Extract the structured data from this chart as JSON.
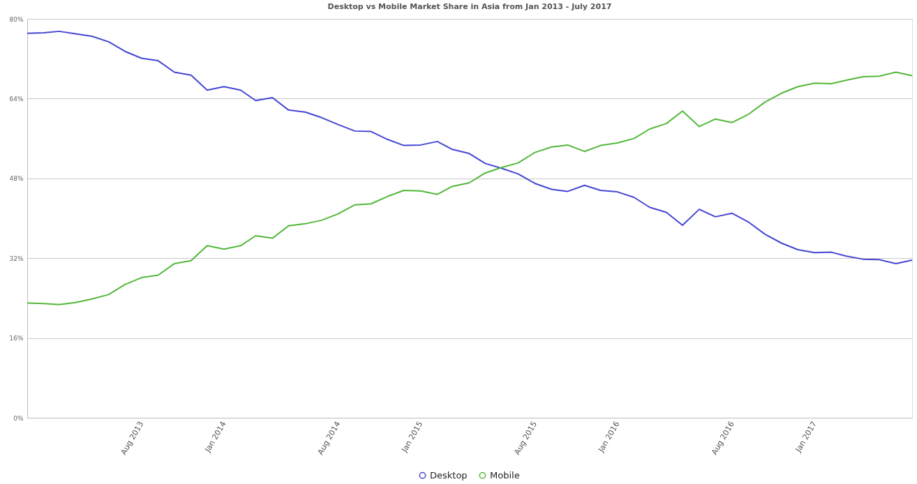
{
  "chart_data": {
    "type": "line",
    "title": "Desktop vs Mobile Market Share in Asia from Jan 2013 - July 2017",
    "x": [
      "2013-01",
      "2013-02",
      "2013-03",
      "2013-04",
      "2013-05",
      "2013-06",
      "2013-07",
      "2013-08",
      "2013-09",
      "2013-10",
      "2013-11",
      "2013-12",
      "2014-01",
      "2014-02",
      "2014-03",
      "2014-04",
      "2014-05",
      "2014-06",
      "2014-07",
      "2014-08",
      "2014-09",
      "2014-10",
      "2014-11",
      "2014-12",
      "2015-01",
      "2015-02",
      "2015-03",
      "2015-04",
      "2015-05",
      "2015-06",
      "2015-07",
      "2015-08",
      "2015-09",
      "2015-10",
      "2015-11",
      "2015-12",
      "2016-01",
      "2016-02",
      "2016-03",
      "2016-04",
      "2016-05",
      "2016-06",
      "2016-07",
      "2016-08",
      "2016-09",
      "2016-10",
      "2016-11",
      "2016-12",
      "2017-01",
      "2017-02",
      "2017-03",
      "2017-04",
      "2017-05",
      "2017-06",
      "2017-07"
    ],
    "series": [
      {
        "name": "Desktop",
        "color": "#4545d4",
        "values": [
          77.1,
          77.2,
          77.5,
          77.0,
          76.5,
          75.4,
          73.5,
          72.1,
          71.6,
          69.3,
          68.7,
          65.7,
          66.4,
          65.7,
          63.6,
          64.2,
          61.7,
          61.3,
          60.2,
          58.8,
          57.5,
          57.4,
          55.8,
          54.6,
          54.7,
          55.4,
          53.8,
          53.0,
          51.0,
          50.0,
          48.9,
          47.0,
          45.8,
          45.4,
          46.6,
          45.6,
          45.3,
          44.2,
          42.2,
          41.2,
          38.6,
          41.8,
          40.3,
          41.0,
          39.2,
          36.8,
          35.0,
          33.7,
          33.1,
          33.2,
          32.4,
          31.8,
          31.7,
          30.9,
          31.6
        ]
      },
      {
        "name": "Mobile",
        "color": "#52b83a",
        "values": [
          23.0,
          22.9,
          22.7,
          23.1,
          23.8,
          24.7,
          26.7,
          28.1,
          28.6,
          30.9,
          31.5,
          34.5,
          33.8,
          34.5,
          36.5,
          36.0,
          38.5,
          38.9,
          39.6,
          40.9,
          42.7,
          42.9,
          44.4,
          45.6,
          45.5,
          44.8,
          46.4,
          47.1,
          49.1,
          50.2,
          51.1,
          53.2,
          54.3,
          54.7,
          53.4,
          54.6,
          55.1,
          56.0,
          57.9,
          59.0,
          61.5,
          58.4,
          59.9,
          59.2,
          60.9,
          63.3,
          65.1,
          66.4,
          67.1,
          67.0,
          67.7,
          68.4,
          68.5,
          69.3,
          68.6
        ]
      }
    ],
    "xlim": [
      "2013-01",
      "2017-07"
    ],
    "xticks": [
      {
        "value": "2013-08",
        "label": "Aug 2013"
      },
      {
        "value": "2014-01",
        "label": "Jan 2014"
      },
      {
        "value": "2014-08",
        "label": "Aug 2014"
      },
      {
        "value": "2015-01",
        "label": "Jan 2015"
      },
      {
        "value": "2015-08",
        "label": "Aug 2015"
      },
      {
        "value": "2016-01",
        "label": "Jan 2016"
      },
      {
        "value": "2016-08",
        "label": "Aug 2016"
      },
      {
        "value": "2017-01",
        "label": "Jan 2017"
      }
    ],
    "ylim": [
      0,
      80
    ],
    "yticks": [
      {
        "value": 0,
        "label": "0%"
      },
      {
        "value": 16,
        "label": "16%"
      },
      {
        "value": 32,
        "label": "32%"
      },
      {
        "value": 48,
        "label": "48%"
      },
      {
        "value": 64,
        "label": "64%"
      },
      {
        "value": 80,
        "label": "80%"
      }
    ],
    "grid": "y",
    "legend": "bottom",
    "line_style": "solid"
  }
}
